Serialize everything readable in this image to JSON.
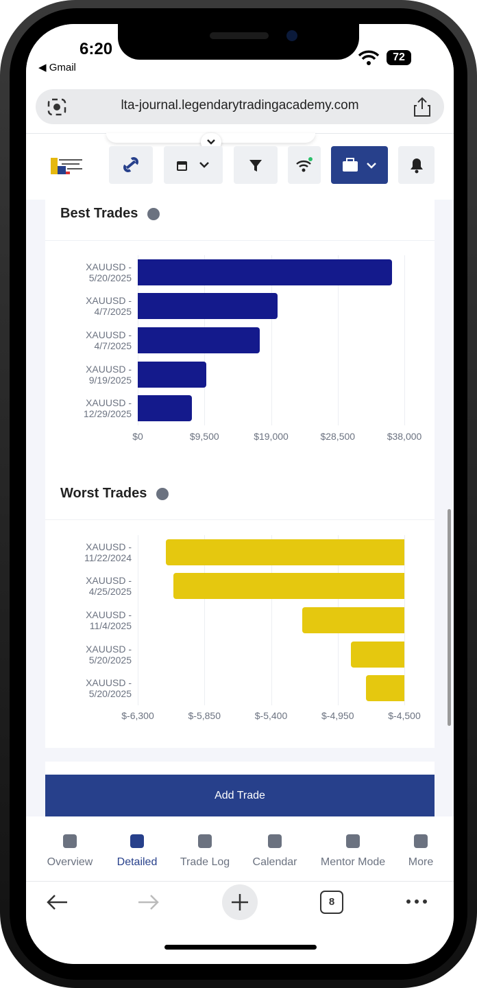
{
  "status": {
    "time": "6:20",
    "back_app": "◀ Gmail",
    "battery": "72"
  },
  "browser": {
    "url": "lta-journal.legendarytradingacademy.com",
    "tabs_count": "8"
  },
  "chart_data": [
    {
      "type": "bar",
      "orientation": "horizontal",
      "title": "Best Trades",
      "categories": [
        "XAUUSD - 5/20/2025",
        "XAUUSD - 4/7/2025",
        "XAUUSD - 4/7/2025",
        "XAUUSD - 9/19/2025",
        "XAUUSD - 12/29/2025"
      ],
      "values": [
        36200,
        19900,
        17400,
        9800,
        7700
      ],
      "color": "#141a8c",
      "xlim": [
        0,
        38000
      ],
      "xticks": [
        {
          "value": 0,
          "label": "$0"
        },
        {
          "value": 9500,
          "label": "$9,500"
        },
        {
          "value": 19000,
          "label": "$19,000"
        },
        {
          "value": 28500,
          "label": "$28,500"
        },
        {
          "value": 38000,
          "label": "$38,000"
        }
      ],
      "grid": true
    },
    {
      "type": "bar",
      "orientation": "horizontal",
      "title": "Worst Trades",
      "categories": [
        "XAUUSD - 11/22/2024",
        "XAUUSD - 4/25/2025",
        "XAUUSD - 11/4/2025",
        "XAUUSD - 5/20/2025",
        "XAUUSD - 5/20/2025"
      ],
      "values": [
        -6110,
        -6060,
        -5190,
        -4860,
        -4760
      ],
      "color": "#e5c80f",
      "xlim": [
        -6300,
        -4500
      ],
      "xticks": [
        {
          "value": -6300,
          "label": "$-6,300"
        },
        {
          "value": -5850,
          "label": "$-5,850"
        },
        {
          "value": -5400,
          "label": "$-5,400"
        },
        {
          "value": -4950,
          "label": "$-4,950"
        },
        {
          "value": -4500,
          "label": "$-4,500"
        }
      ],
      "grid": true
    }
  ],
  "footer": {
    "button": "Add Trade",
    "nav": [
      "Overview",
      "Detailed",
      "Trade Log",
      "Calendar",
      "Mentor Mode",
      "More"
    ],
    "active_index": 1
  }
}
